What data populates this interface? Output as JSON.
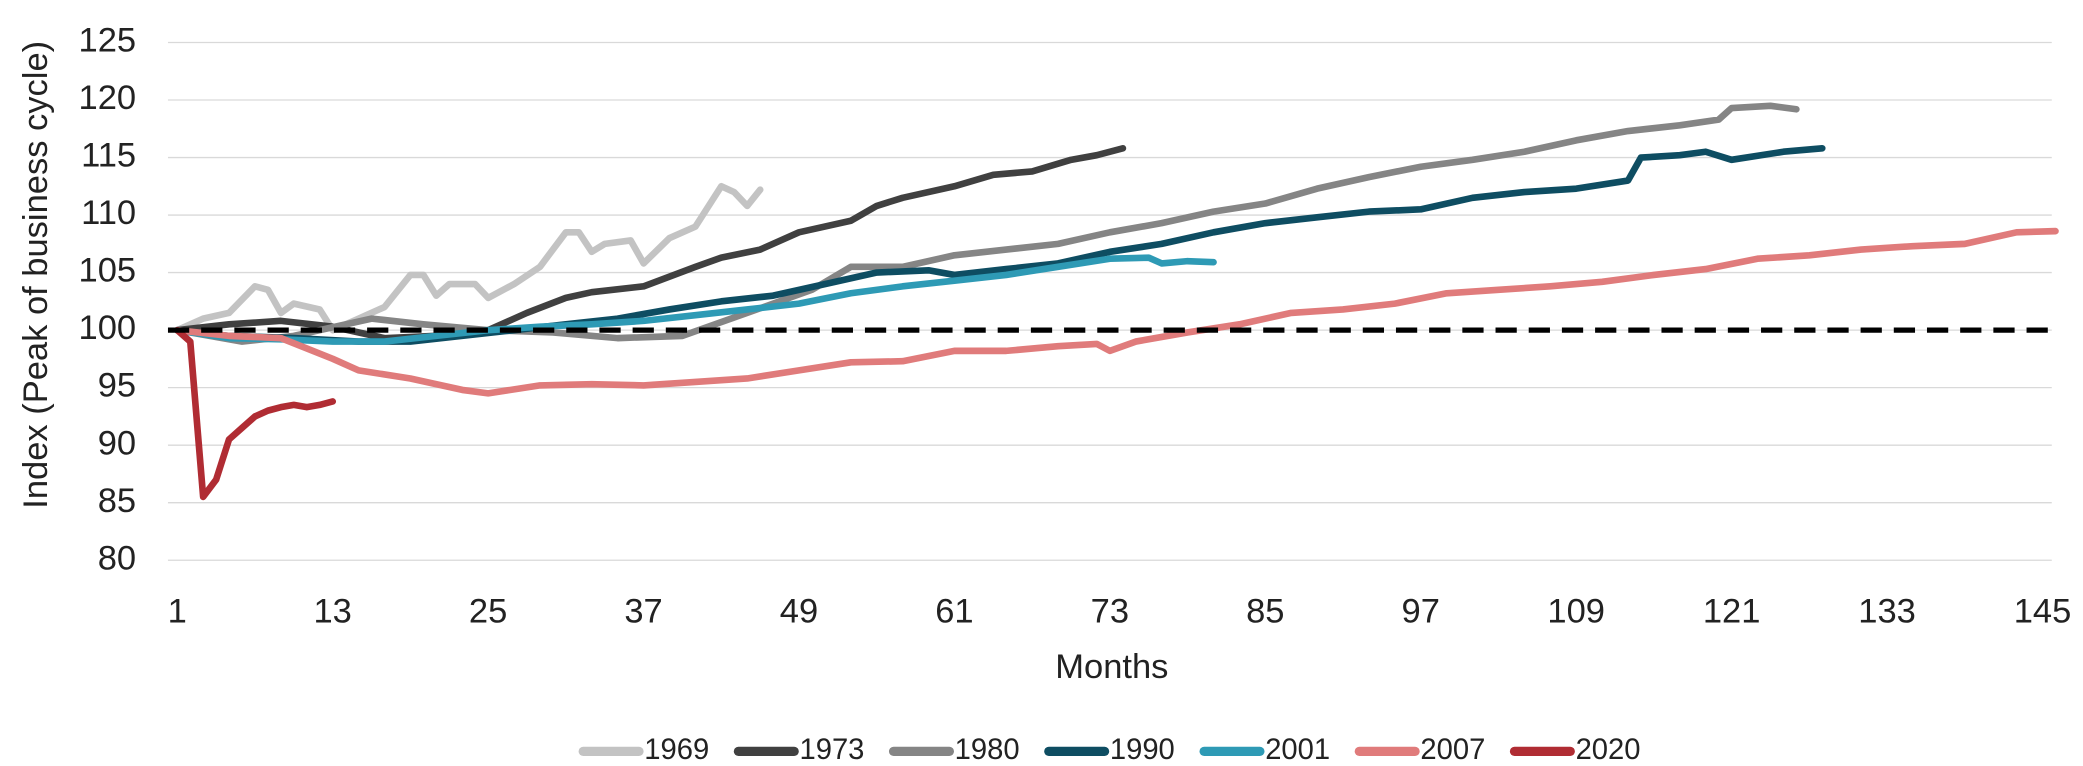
{
  "chart_data": {
    "type": "line",
    "xlabel": "Months",
    "ylabel": "Index (Peak of business cycle)",
    "xlim": [
      1,
      145
    ],
    "ylim": [
      80,
      125
    ],
    "xticks": [
      1,
      13,
      25,
      37,
      49,
      61,
      73,
      85,
      97,
      109,
      121,
      133,
      145
    ],
    "yticks": [
      80,
      85,
      90,
      95,
      100,
      105,
      110,
      115,
      120,
      125
    ],
    "grid": true,
    "legend": "bottom",
    "reference_line": 100,
    "series": [
      {
        "name": "1969",
        "color": "#c3c3c3",
        "x": [
          1,
          3,
          5,
          7,
          8,
          9,
          10,
          12,
          13,
          15,
          17,
          19,
          20,
          21,
          22,
          24,
          25,
          27,
          29,
          31,
          32,
          33,
          34,
          36,
          37,
          39,
          41,
          43,
          44,
          45,
          46
        ],
        "values": [
          100,
          101,
          101.5,
          103.8,
          103.5,
          101.5,
          102.3,
          101.8,
          100,
          101,
          102,
          104.8,
          104.8,
          103,
          104,
          104,
          102.8,
          104,
          105.5,
          108.5,
          108.5,
          106.8,
          107.5,
          107.8,
          105.8,
          108,
          109,
          112.5,
          112,
          110.8,
          112.2
        ]
      },
      {
        "name": "1973",
        "color": "#404040",
        "x": [
          1,
          5,
          9,
          13,
          17,
          21,
          25,
          28,
          31,
          33,
          37,
          41,
          43,
          46,
          49,
          53,
          55,
          57,
          61,
          64,
          67,
          70,
          72,
          74
        ],
        "values": [
          100,
          100.5,
          100.8,
          100.3,
          99.3,
          99.5,
          100,
          101.5,
          102.8,
          103.3,
          103.8,
          105.5,
          106.3,
          107,
          108.5,
          109.5,
          110.8,
          111.5,
          112.5,
          113.5,
          113.8,
          114.8,
          115.2,
          115.8
        ]
      },
      {
        "name": "1980",
        "color": "#858585",
        "x": [
          1,
          6,
          10,
          16,
          20,
          25,
          30,
          35,
          40,
          45,
          50,
          53,
          57,
          61,
          65,
          69,
          73,
          77,
          81,
          85,
          89,
          93,
          97,
          101,
          105,
          109,
          113,
          117,
          120,
          121,
          124,
          126
        ],
        "values": [
          100,
          99,
          99.5,
          101,
          100.5,
          100,
          99.8,
          99.3,
          99.5,
          101.5,
          103.5,
          105.5,
          105.5,
          106.5,
          107,
          107.5,
          108.5,
          109.3,
          110.3,
          111,
          112.3,
          113.3,
          114.2,
          114.8,
          115.5,
          116.5,
          117.3,
          117.8,
          118.3,
          119.3,
          119.5,
          119.2
        ]
      },
      {
        "name": "1990",
        "color": "#0e4d62",
        "x": [
          1,
          5,
          10,
          15,
          19,
          23,
          27,
          31,
          35,
          39,
          43,
          47,
          51,
          55,
          59,
          61,
          65,
          69,
          73,
          77,
          81,
          85,
          89,
          93,
          97,
          101,
          105,
          109,
          113,
          114,
          117,
          119,
          121,
          125,
          128
        ],
        "values": [
          100,
          99.5,
          99.3,
          99,
          99,
          99.5,
          100,
          100.5,
          101,
          101.8,
          102.5,
          103,
          104,
          105,
          105.2,
          104.8,
          105.3,
          105.8,
          106.8,
          107.5,
          108.5,
          109.3,
          109.8,
          110.3,
          110.5,
          111.5,
          112,
          112.3,
          113,
          115,
          115.2,
          115.5,
          114.8,
          115.5,
          115.8
        ]
      },
      {
        "name": "2001",
        "color": "#2e9ab5",
        "x": [
          1,
          5,
          9,
          13,
          17,
          21,
          25,
          29,
          33,
          37,
          41,
          45,
          49,
          53,
          57,
          61,
          65,
          69,
          73,
          76,
          77,
          79,
          81
        ],
        "values": [
          100,
          99.3,
          99.2,
          99,
          99,
          99.5,
          100,
          100.3,
          100.5,
          100.8,
          101.3,
          101.8,
          102.3,
          103.2,
          103.8,
          104.3,
          104.8,
          105.5,
          106.2,
          106.3,
          105.8,
          106,
          105.9
        ]
      },
      {
        "name": "2007",
        "color": "#e07b7b",
        "x": [
          1,
          5,
          9,
          13,
          15,
          19,
          23,
          25,
          29,
          33,
          37,
          41,
          45,
          49,
          53,
          57,
          61,
          65,
          69,
          72,
          73,
          75,
          79,
          83,
          87,
          91,
          95,
          99,
          103,
          107,
          111,
          115,
          119,
          123,
          127,
          131,
          135,
          139,
          143,
          146
        ],
        "values": [
          100,
          99.5,
          99.3,
          97.5,
          96.5,
          95.8,
          94.8,
          94.5,
          95.2,
          95.3,
          95.2,
          95.5,
          95.8,
          96.5,
          97.2,
          97.3,
          98.2,
          98.2,
          98.6,
          98.8,
          98.2,
          99,
          99.8,
          100.5,
          101.5,
          101.8,
          102.3,
          103.2,
          103.5,
          103.8,
          104.2,
          104.8,
          105.3,
          106.2,
          106.5,
          107,
          107.3,
          107.5,
          108.5,
          108.6
        ]
      },
      {
        "name": "2020",
        "color": "#b02c33",
        "x": [
          1,
          2,
          3,
          4,
          5,
          6,
          7,
          8,
          9,
          10,
          11,
          12,
          13
        ],
        "values": [
          100,
          99,
          85.5,
          87,
          90.5,
          91.5,
          92.5,
          93,
          93.3,
          93.5,
          93.3,
          93.5,
          93.8
        ]
      }
    ]
  }
}
